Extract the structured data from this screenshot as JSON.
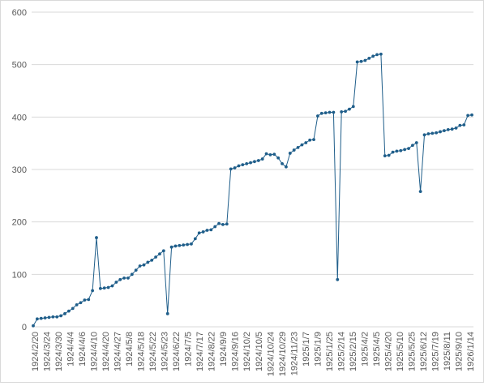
{
  "chart_data": {
    "type": "line",
    "title": "",
    "xlabel": "",
    "ylabel": "",
    "ylim": [
      0,
      600
    ],
    "y_ticks": [
      0,
      100,
      200,
      300,
      400,
      500,
      600
    ],
    "grid": "horizontal",
    "legend": "none",
    "x_tick_labels": [
      "1924/2/20",
      "1924/3/24",
      "1924/3/30",
      "1924/4/4",
      "1924/4/6",
      "1924/4/10",
      "1924/4/20",
      "1924/4/27",
      "1924/5/8",
      "1924/5/18",
      "1924/5/22",
      "1924/5/23",
      "1924/6/22",
      "1924/7/5",
      "1924/7/17",
      "1924/8/22",
      "1924/9/9",
      "1924/9/16",
      "1924/10/2",
      "1924/10/5",
      "1924/10/24",
      "1924/10/29",
      "1924/11/23",
      "1925/1/7",
      "1925/1/9",
      "1925/1/25",
      "1925/2/14",
      "1925/2/15",
      "1925/4/2",
      "1925/4/5",
      "1925/4/20",
      "1925/5/10",
      "1925/5/25",
      "1925/6/12",
      "1925/7/19",
      "1925/8/11",
      "1925/9/10",
      "1926/1/14"
    ],
    "series": [
      {
        "color": "#1f5e8a",
        "values": [
          2,
          15,
          16,
          17,
          18,
          19,
          19,
          21,
          25,
          30,
          35,
          42,
          46,
          51,
          52,
          69,
          170,
          73,
          74,
          75,
          78,
          85,
          90,
          93,
          93,
          100,
          108,
          116,
          118,
          123,
          127,
          133,
          139,
          145,
          25,
          152,
          154,
          155,
          156,
          157,
          158,
          168,
          179,
          181,
          184,
          185,
          191,
          197,
          195,
          196,
          301,
          303,
          307,
          309,
          311,
          313,
          315,
          317,
          320,
          330,
          328,
          329,
          322,
          311,
          305,
          331,
          337,
          342,
          347,
          351,
          356,
          357,
          402,
          407,
          408,
          409,
          409,
          90,
          410,
          411,
          415,
          420,
          505,
          506,
          508,
          512,
          516,
          519,
          520,
          326,
          327,
          333,
          335,
          336,
          338,
          340,
          346,
          351,
          258,
          366,
          368,
          369,
          370,
          372,
          374,
          376,
          377,
          379,
          384,
          385,
          403,
          404
        ]
      }
    ]
  }
}
